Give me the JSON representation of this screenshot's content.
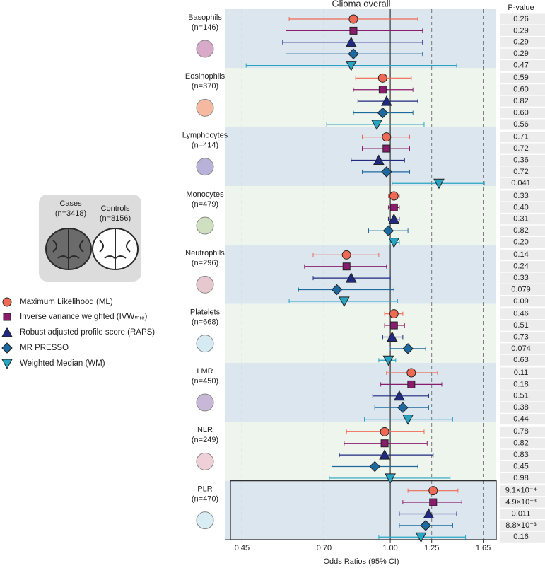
{
  "chart_data": {
    "type": "forest",
    "title": "Glioma overall",
    "x_label": "Odds Ratios (95% CI)",
    "p_header": "P-value",
    "xscale": "log",
    "xlim": [
      0.41,
      1.77
    ],
    "xticks": [
      0.45,
      {
        "value": 0.7,
        "label": "0.70"
      },
      {
        "value": 1,
        "label": "1.00"
      },
      1.25,
      1.65
    ],
    "reference": 1,
    "highlight_group": 8,
    "methods": [
      {
        "name": "Maximum Likelihood (ML)",
        "color": "#ef6a55",
        "marker": "circle"
      },
      {
        "name": "Inverse variance weighted (IVWₘᵣₑ)",
        "color": "#8a1c6e",
        "marker": "square"
      },
      {
        "name": "Robust adjusted profile score (RAPS)",
        "color": "#1f2a80",
        "marker": "triangle"
      },
      {
        "name": "MR PRESSO",
        "color": "#1d6aa0",
        "marker": "diamond"
      },
      {
        "name": "Weighted Median (WM)",
        "color": "#28a5c2",
        "marker": "triangle-down"
      }
    ],
    "groups": [
      {
        "name": "Basophils",
        "n": "(n=146)",
        "estimates": [
          0.82,
          0.82,
          0.81,
          0.82,
          0.81
        ],
        "lower": [
          0.58,
          0.57,
          0.56,
          0.57,
          0.46
        ],
        "upper": [
          1.16,
          1.19,
          1.19,
          1.19,
          1.43
        ],
        "p_values": [
          0.26,
          0.29,
          0.29,
          0.29,
          0.47
        ]
      },
      {
        "name": "Eosinophils",
        "n": "(n=370)",
        "estimates": [
          0.96,
          0.96,
          0.98,
          0.96,
          0.93
        ],
        "lower": [
          0.83,
          0.82,
          0.84,
          0.82,
          0.71
        ],
        "upper": [
          1.12,
          1.13,
          1.16,
          1.13,
          1.2
        ],
        "p_values": [
          0.59,
          {
            "value": 0.6,
            "label": "0.60"
          },
          0.82,
          {
            "value": 0.6,
            "label": "0.60"
          },
          0.56
        ]
      },
      {
        "name": "Lymphocytes",
        "n": "(n=414)",
        "estimates": [
          0.98,
          0.98,
          0.94,
          0.98,
          1.3
        ],
        "lower": [
          0.86,
          0.86,
          0.81,
          0.86,
          1.01
        ],
        "upper": [
          1.11,
          1.11,
          1.08,
          1.11,
          1.66
        ],
        "p_values": [
          0.71,
          0.72,
          0.36,
          0.72,
          0.041
        ]
      },
      {
        "name": "Monocytes",
        "n": "(n=479)",
        "estimates": [
          1.02,
          1.02,
          1.02,
          0.99,
          1.02
        ],
        "lower": [
          0.99,
          0.99,
          0.99,
          0.89,
          1.0
        ],
        "upper": [
          1.05,
          1.05,
          1.05,
          1.1,
          1.05
        ],
        "p_values": [
          0.33,
          {
            "value": 0.4,
            "label": "0.40"
          },
          0.31,
          0.82,
          {
            "value": 0.2,
            "label": "0.20"
          }
        ]
      },
      {
        "name": "Neutrophils",
        "n": "(n=296)",
        "estimates": [
          0.79,
          0.79,
          0.81,
          0.75,
          0.78
        ],
        "lower": [
          0.66,
          0.63,
          0.66,
          0.61,
          0.58
        ],
        "upper": [
          0.94,
          0.98,
          1.0,
          1.02,
          1.04
        ],
        "p_values": [
          0.14,
          0.24,
          0.33,
          0.079,
          0.09
        ]
      },
      {
        "name": "Platelets",
        "n": "(n=668)",
        "estimates": [
          1.02,
          1.02,
          1.01,
          1.1,
          0.99
        ],
        "lower": [
          0.97,
          0.97,
          0.96,
          1.0,
          0.94
        ],
        "upper": [
          1.07,
          1.08,
          1.07,
          1.21,
          1.03
        ],
        "p_values": [
          0.46,
          0.51,
          0.73,
          0.074,
          0.63
        ]
      },
      {
        "name": "LMR",
        "n": "(n=450)",
        "estimates": [
          1.12,
          1.12,
          1.05,
          1.07,
          1.1
        ],
        "lower": [
          0.98,
          0.95,
          0.91,
          0.92,
          0.87
        ],
        "upper": [
          1.29,
          1.32,
          1.23,
          1.23,
          1.4
        ],
        "p_values": [
          0.11,
          0.18,
          0.51,
          0.38,
          0.44
        ]
      },
      {
        "name": "NLR",
        "n": "(n=249)",
        "estimates": [
          0.97,
          0.97,
          0.97,
          0.92,
          1.0
        ],
        "lower": [
          0.79,
          0.78,
          0.76,
          0.73,
          0.72
        ],
        "upper": [
          1.2,
          1.22,
          1.26,
          1.16,
          1.38
        ],
        "p_values": [
          0.78,
          0.82,
          0.83,
          0.45,
          0.98
        ]
      },
      {
        "name": "PLR",
        "n": "(n=470)",
        "estimates": [
          1.26,
          1.26,
          1.23,
          1.21,
          1.18
        ],
        "lower": [
          1.1,
          1.07,
          1.05,
          1.05,
          0.94
        ],
        "upper": [
          1.44,
          1.47,
          1.43,
          1.4,
          1.5
        ],
        "p_values": [
          {
            "value": 0.00091,
            "label": "9.1×10⁻⁴"
          },
          {
            "value": 0.0049,
            "label": "4.9×10⁻³"
          },
          0.011,
          {
            "value": 0.0088,
            "label": "8.8×10⁻³"
          },
          0.16
        ]
      }
    ]
  },
  "panel": {
    "cases": "Cases",
    "cases_n": "(n=3418)",
    "controls": "Controls",
    "controls_n": "(n=8156)"
  }
}
